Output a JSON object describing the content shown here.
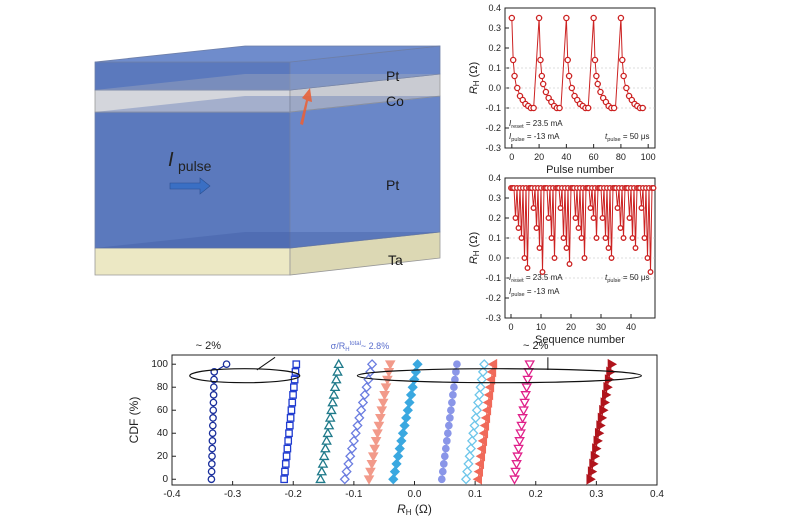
{
  "diagram": {
    "layers": [
      "Pt",
      "Co",
      "Pt",
      "Ta"
    ],
    "current_label": "I",
    "current_sub": "pulse"
  },
  "chart_data": [
    {
      "type": "line",
      "xlabel": "Pulse number",
      "ylabel": "R",
      "ylabel_sub": "H",
      "yunit": "(Ω)",
      "xlim": [
        -5,
        105
      ],
      "ylim": [
        -0.3,
        0.4
      ],
      "xticks": [
        "0",
        "20",
        "40",
        "60",
        "80",
        "100"
      ],
      "yticks": [
        "-0.3",
        "-0.2",
        "-0.1",
        "0.0",
        "0.1",
        "0.2",
        "0.3",
        "0.4"
      ],
      "color": "#cc2222",
      "cycles": [
        0,
        20,
        40,
        60,
        80
      ],
      "cycle_values": [
        0.35,
        0.14,
        0.06,
        0.02,
        0.0,
        -0.02,
        -0.04,
        -0.05,
        -0.06,
        -0.07,
        -0.08,
        -0.09,
        -0.09,
        -0.1,
        -0.1,
        -0.1,
        -0.1
      ],
      "annotations": {
        "reset": {
          "label": "I",
          "sub": "reset",
          "value": "= 23.5 mA"
        },
        "pulse": {
          "label": "I",
          "sub": "pulse",
          "value": "= -13 mA"
        },
        "tpulse": {
          "label": "t",
          "sub": "pulse",
          "value": "= 50 μs"
        }
      }
    },
    {
      "type": "line",
      "xlabel": "Sequence number",
      "ylabel": "R",
      "ylabel_sub": "H",
      "yunit": "(Ω)",
      "xlim": [
        -2,
        48
      ],
      "ylim": [
        -0.3,
        0.4
      ],
      "xticks": [
        "0",
        "10",
        "20",
        "30",
        "40"
      ],
      "yticks": [
        "-0.3",
        "-0.2",
        "-0.1",
        "0.0",
        "0.1",
        "0.2",
        "0.3",
        "0.4"
      ],
      "color": "#cc2222",
      "low_values": [
        0.35,
        0.2,
        0.15,
        0.1,
        0.0,
        -0.05,
        0.35,
        0.25,
        0.15,
        0.05,
        -0.07,
        0.35,
        0.2,
        0.1,
        0.0,
        0.35,
        0.25,
        0.1,
        0.05,
        -0.03,
        0.35,
        0.2,
        0.15,
        0.1,
        0.0,
        0.35,
        0.25,
        0.2,
        0.1,
        0.35,
        0.2,
        0.1,
        0.05,
        0.0,
        0.35,
        0.25,
        0.15,
        0.1,
        0.35,
        0.2,
        0.1,
        0.05,
        0.35,
        0.25,
        0.1,
        0.0,
        -0.07,
        0.35
      ],
      "high_value": 0.35,
      "annotations": {
        "reset": {
          "label": "I",
          "sub": "reset",
          "value": "= 23.5 mA"
        },
        "pulse": {
          "label": "I",
          "sub": "pulse",
          "value": "= -13 mA"
        },
        "tpulse": {
          "label": "t",
          "sub": "pulse",
          "value": "= 50 μs"
        }
      }
    },
    {
      "type": "scatter",
      "xlabel": "R",
      "xlabel_sub": "H",
      "xunit": "(Ω)",
      "ylabel": "CDF (%)",
      "xlim": [
        -0.4,
        0.4
      ],
      "ylim": [
        -5,
        108
      ],
      "xticks": [
        "-0.4",
        "-0.3",
        "-0.2",
        "-0.1",
        "0.0",
        "0.1",
        "0.2",
        "0.3",
        "0.4"
      ],
      "yticks": [
        "0",
        "20",
        "40",
        "60",
        "80",
        "100"
      ],
      "annotations": {
        "left": "~ 2%",
        "right": "~ 2%",
        "sigma": "σ/R",
        "sigma_sup": "total",
        "sigma_sub": "H",
        "sigma_value": "~ 2.8%"
      },
      "series": [
        {
          "marker": "circle-open",
          "color": "#1a2f9c",
          "x_low": -0.335,
          "x_high": -0.33,
          "x_top": -0.31
        },
        {
          "marker": "square-open",
          "color": "#1f3bd0",
          "x_low": -0.215,
          "x_high": -0.195
        },
        {
          "marker": "triangle-open",
          "color": "#1f7a8a",
          "x_low": -0.155,
          "x_high": -0.125
        },
        {
          "marker": "diamond-open",
          "color": "#6b7de0",
          "x_low": -0.115,
          "x_high": -0.07
        },
        {
          "marker": "tri-down",
          "color": "#f29a8a",
          "x_low": -0.075,
          "x_high": -0.04
        },
        {
          "marker": "diamond",
          "color": "#3aa8e0",
          "x_low": -0.035,
          "x_high": 0.005
        },
        {
          "marker": "circle",
          "color": "#8a96e8",
          "x_low": 0.045,
          "x_high": 0.07
        },
        {
          "marker": "diamond-open",
          "color": "#6ec6ea",
          "x_low": 0.085,
          "x_high": 0.115
        },
        {
          "marker": "tri-left",
          "color": "#f06a5a",
          "x_low": 0.105,
          "x_high": 0.13
        },
        {
          "marker": "tri-down-open",
          "color": "#e0208a",
          "x_low": 0.165,
          "x_high": 0.19
        },
        {
          "marker": "tri-right",
          "color": "#b0141c",
          "x_low": 0.29,
          "x_high": 0.325
        }
      ]
    }
  ]
}
